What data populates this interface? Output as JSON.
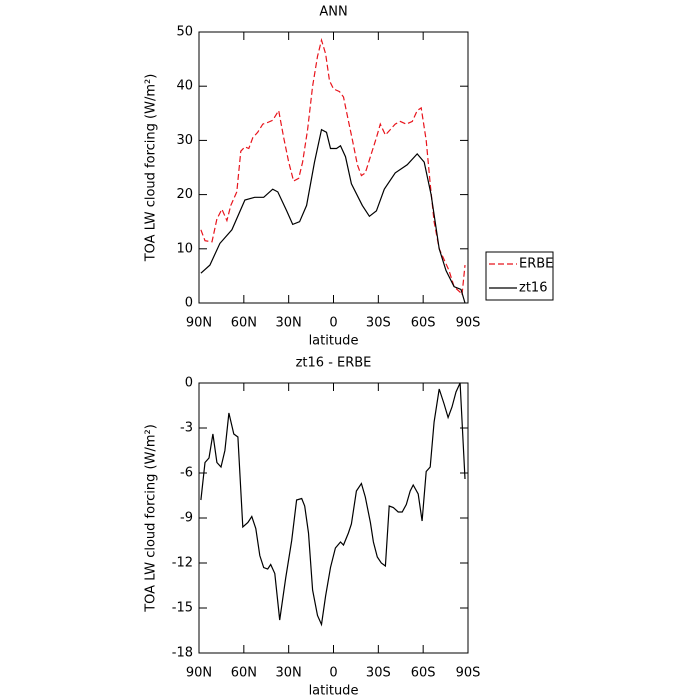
{
  "chart_data": [
    {
      "type": "line",
      "title": "ANN",
      "xlabel": "latitude",
      "ylabel": "TOA LW cloud forcing (W/m²)",
      "xlim": [
        90,
        -90
      ],
      "xticks": [
        {
          "value": 90,
          "label": "90N"
        },
        {
          "value": 60,
          "label": "60N"
        },
        {
          "value": 30,
          "label": "30N"
        },
        0,
        {
          "value": -30,
          "label": "30S"
        },
        {
          "value": -60,
          "label": "60S"
        },
        {
          "value": -90,
          "label": "90S"
        }
      ],
      "ylim": [
        0,
        50
      ],
      "yticks": [
        0,
        10,
        20,
        30,
        40,
        50
      ],
      "legend": "right",
      "series": [
        {
          "name": "ERBE",
          "color": "#e8141c",
          "line_style": "dashed",
          "x": [
            88.7,
            86,
            81.3,
            78,
            74.7,
            71.3,
            68.7,
            64.7,
            62,
            59.3,
            56.7,
            54,
            50.7,
            47.3,
            44,
            40.7,
            36.7,
            33.3,
            30,
            26.7,
            23.3,
            20.7,
            17.3,
            14,
            10.7,
            8,
            5.3,
            2.7,
            0,
            -4,
            -6.7,
            -9.3,
            -12.7,
            -16,
            -18.7,
            -21.3,
            -24.7,
            -28.7,
            -31.3,
            -34.7,
            -38,
            -41.3,
            -44.7,
            -48.7,
            -52.7,
            -56,
            -58.7,
            -62,
            -64.7,
            -67.3,
            -70.7,
            -74,
            -77.3,
            -80.7,
            -84.7,
            -86,
            -88
          ],
          "values": [
            13.5,
            11.5,
            11.3,
            15.5,
            17.3,
            15.2,
            18,
            20.5,
            28,
            28.8,
            28.5,
            30.5,
            31.5,
            33,
            33.3,
            33.7,
            35.5,
            30.5,
            26,
            22.5,
            23,
            26,
            32,
            40,
            45.5,
            48.5,
            46,
            41,
            39.5,
            39,
            38,
            34.5,
            30,
            25.5,
            23.5,
            24,
            27,
            30.5,
            33,
            31,
            32,
            33,
            33.5,
            33,
            33.5,
            35.5,
            36,
            30,
            22,
            15,
            10,
            8,
            6,
            3,
            2,
            1.5,
            7
          ]
        },
        {
          "name": "zt16",
          "color": "#000000",
          "line_style": "solid",
          "x": [
            88.7,
            82.7,
            76,
            68,
            59.3,
            52.7,
            46.7,
            40.7,
            37.3,
            31.3,
            27.3,
            22.7,
            18,
            12.7,
            8,
            4.7,
            2,
            -2,
            -4.7,
            -8,
            -12,
            -19.3,
            -24,
            -28.7,
            -34,
            -41.3,
            -49.3,
            -56,
            -60.7,
            -65.3,
            -70.7,
            -75.3,
            -80.7,
            -85.3,
            -88
          ],
          "values": [
            5.5,
            7,
            11,
            13.5,
            19,
            19.5,
            19.5,
            21,
            20.5,
            17,
            14.5,
            15,
            18,
            26,
            32,
            31.5,
            28.5,
            28.5,
            29,
            27,
            22,
            18,
            16,
            17,
            21,
            24,
            25.5,
            27.5,
            26,
            20,
            10,
            6,
            3,
            2.5,
            0
          ]
        }
      ]
    },
    {
      "type": "line",
      "title": "zt16 - ERBE",
      "xlabel": "latitude",
      "ylabel": "TOA LW cloud forcing (W/m²)",
      "xlim": [
        90,
        -90
      ],
      "xticks": [
        {
          "value": 90,
          "label": "90N"
        },
        {
          "value": 60,
          "label": "60N"
        },
        {
          "value": 30,
          "label": "30N"
        },
        0,
        {
          "value": -30,
          "label": "30S"
        },
        {
          "value": -60,
          "label": "60S"
        },
        {
          "value": -90,
          "label": "90S"
        }
      ],
      "ylim": [
        -18,
        0
      ],
      "yticks": [
        -18,
        -15,
        -12,
        -9,
        -6,
        -3,
        0
      ],
      "series": [
        {
          "color": "#000000",
          "line_style": "solid",
          "x": [
            88.7,
            86,
            83.3,
            80.7,
            78,
            75.3,
            72.7,
            70,
            66.7,
            64,
            60.7,
            57.3,
            54.7,
            52,
            49.3,
            46.7,
            44,
            42,
            39.3,
            36,
            32,
            28,
            24.7,
            21.3,
            19.3,
            16.7,
            14,
            10.7,
            8,
            5.3,
            2,
            -1.3,
            -4.7,
            -6.7,
            -10,
            -12,
            -15.3,
            -18.7,
            -21.3,
            -24.7,
            -26.7,
            -29.3,
            -32,
            -34.7,
            -37.3,
            -40,
            -43.3,
            -46,
            -48.7,
            -51.3,
            -53.3,
            -56.7,
            -59.3,
            -62,
            -64.7,
            -67.3,
            -70.7,
            -74,
            -76.7,
            -79.3,
            -82,
            -84.7,
            -88
          ],
          "values": [
            -7.8,
            -5.3,
            -5,
            -3.4,
            -5.3,
            -5.6,
            -4.5,
            -2,
            -3.4,
            -3.6,
            -9.6,
            -9.3,
            -8.9,
            -9.7,
            -11.5,
            -12.3,
            -12.4,
            -12.1,
            -12.7,
            -15.8,
            -13,
            -10.5,
            -7.8,
            -7.7,
            -8.2,
            -10,
            -13.8,
            -15.5,
            -16.1,
            -14.2,
            -12.3,
            -11,
            -10.6,
            -10.8,
            -10,
            -9.4,
            -7.2,
            -6.7,
            -7.6,
            -9.3,
            -10.6,
            -11.6,
            -12,
            -12.2,
            -8.2,
            -8.3,
            -8.6,
            -8.6,
            -8.1,
            -7.2,
            -6.8,
            -7.4,
            -9.2,
            -5.9,
            -5.6,
            -2.6,
            -0.4,
            -1.4,
            -2.3,
            -1.6,
            -0.6,
            0,
            -6.4
          ]
        }
      ]
    }
  ]
}
